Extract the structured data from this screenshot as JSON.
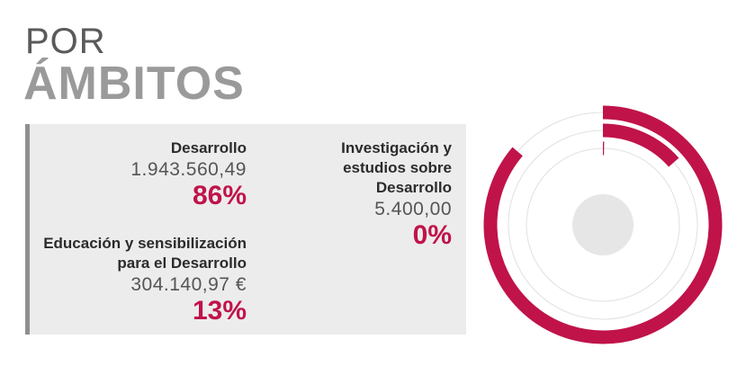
{
  "title": {
    "line1": "POR",
    "line2": "ÁMBITOS"
  },
  "colors": {
    "accent": "#c0134a",
    "track": "#e0e0e0",
    "center": "#e6e6e6",
    "panel": "#ececec",
    "panel_border": "#8f8f8f"
  },
  "chart_data": {
    "type": "pie",
    "title": "",
    "style": "concentric-rings",
    "categories": [
      "Desarrollo",
      "Educación y sensibilización para el Desarrollo",
      "Investigación y estudios sobre Desarrollo"
    ],
    "values": [
      1943560.49,
      304140.97,
      5400.0
    ],
    "percent_labels": [
      "86%",
      "13%",
      "0%"
    ],
    "percent_values": [
      86,
      13,
      0
    ],
    "amount_labels": [
      "1.943.560,49",
      "304.140,97 €",
      "5.400,00"
    ],
    "label_lines": [
      [
        "Desarrollo"
      ],
      [
        "Educación y sensibilización",
        "para el Desarrollo"
      ],
      [
        "Investigación y",
        "estudios sobre",
        "Desarrollo"
      ]
    ]
  }
}
